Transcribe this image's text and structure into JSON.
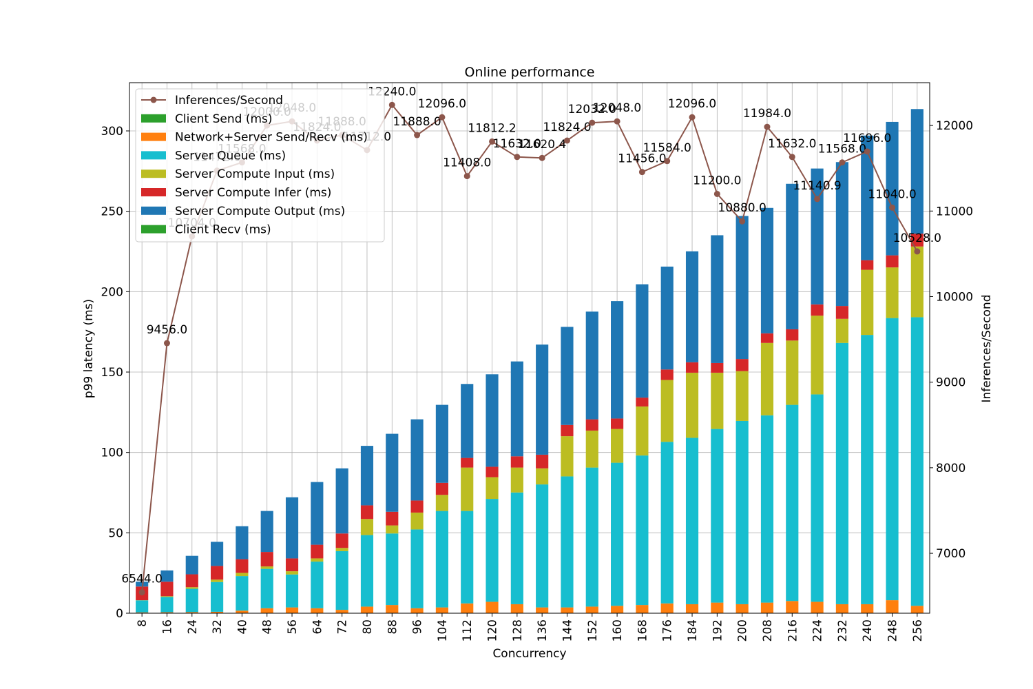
{
  "chart_data": {
    "type": "bar",
    "title": "Online performance",
    "xlabel": "Concurrency",
    "ylabel": "p99 latency (ms)",
    "y2label": "Inferences/Second",
    "ylim": [
      0,
      330
    ],
    "y2lim": [
      6300,
      12500
    ],
    "yticks": [
      0,
      50,
      100,
      150,
      200,
      250,
      300
    ],
    "y2ticks": [
      7000,
      8000,
      9000,
      10000,
      11000,
      12000
    ],
    "grid": true,
    "legend_position": "top-left",
    "categories": [
      "8",
      "16",
      "24",
      "32",
      "40",
      "48",
      "56",
      "64",
      "72",
      "80",
      "88",
      "96",
      "104",
      "112",
      "120",
      "128",
      "136",
      "144",
      "152",
      "160",
      "168",
      "176",
      "184",
      "192",
      "200",
      "208",
      "216",
      "224",
      "232",
      "240",
      "248",
      "256"
    ],
    "series": [
      {
        "name": "Client Send (ms)",
        "color": "#2ca02c",
        "values": [
          0.1,
          0.1,
          0.1,
          0.1,
          0.1,
          0.1,
          0.1,
          0.1,
          0.1,
          0.1,
          0.1,
          0.1,
          0.1,
          0.1,
          0.1,
          0.1,
          0.1,
          0.1,
          0.1,
          0.1,
          0.1,
          0.1,
          0.1,
          0.1,
          0.1,
          0.1,
          0.1,
          0.1,
          0.1,
          0.1,
          0.1,
          0.1
        ]
      },
      {
        "name": "Network+Server Send/Recv (ms)",
        "color": "#ff7f0e",
        "values": [
          0.4,
          0.5,
          0.6,
          0.8,
          1.5,
          3,
          3.5,
          3,
          2,
          4,
          5,
          3,
          3.5,
          6,
          7,
          5.5,
          3.5,
          3.5,
          4,
          4.5,
          5,
          6,
          5.5,
          6.5,
          5.5,
          6.5,
          7.5,
          7,
          5.5,
          5.5,
          8,
          4.5
        ]
      },
      {
        "name": "Server Queue (ms)",
        "color": "#17becf",
        "values": [
          7.5,
          9.5,
          14.5,
          18.5,
          21.5,
          24.5,
          20.5,
          29,
          36.5,
          44.5,
          44.5,
          49,
          60,
          57.5,
          64,
          69.5,
          76.5,
          81.5,
          86.5,
          89,
          93,
          100.5,
          103.5,
          108,
          114,
          116.5,
          122,
          129,
          162.5,
          167.5,
          175.5,
          179.5
        ]
      },
      {
        "name": "Server Compute Input (ms)",
        "color": "#bcbd22",
        "values": [
          0.1,
          0.5,
          1,
          1.5,
          2,
          1.5,
          2,
          2,
          2,
          10,
          5,
          10.5,
          10,
          27,
          13.5,
          15.5,
          10,
          25,
          23,
          21,
          30.5,
          38.5,
          40.5,
          35,
          31,
          45,
          40,
          49,
          15,
          40.5,
          31.5,
          44
        ]
      },
      {
        "name": "Server Compute Infer (ms)",
        "color": "#d62728",
        "values": [
          8.5,
          9,
          8,
          8.5,
          8.5,
          9,
          8,
          8.5,
          9,
          8.5,
          8.5,
          7.5,
          7.5,
          6,
          6.5,
          7,
          8.5,
          7,
          7,
          6.5,
          5.5,
          6.5,
          6.5,
          6,
          7.5,
          6,
          7,
          7,
          8,
          6,
          7.5,
          8
        ]
      },
      {
        "name": "Server Compute Output (ms)",
        "color": "#1f77b4",
        "values": [
          3,
          7,
          11.5,
          15,
          20.5,
          25.5,
          38,
          39,
          40.5,
          37,
          48.5,
          50.5,
          48.5,
          46,
          57.5,
          59,
          68.5,
          61,
          67,
          73,
          70.5,
          64,
          69,
          79.5,
          89,
          78,
          90.5,
          84.5,
          89.5,
          77.5,
          83,
          77.5
        ]
      },
      {
        "name": "Client Recv (ms)",
        "color": "#2ca02c",
        "values": [
          0,
          0,
          0,
          0,
          0,
          0,
          0,
          0,
          0,
          0,
          0,
          0,
          0,
          0,
          0,
          0,
          0,
          0,
          0,
          0,
          0,
          0,
          0,
          0,
          0,
          0,
          0,
          0,
          0,
          0,
          0,
          0
        ]
      }
    ],
    "line_series": {
      "name": "Inferences/Second",
      "color": "#8c564b",
      "values": [
        6544.0,
        9456.0,
        10704.0,
        11472.0,
        11568.0,
        12000.0,
        12048.0,
        11824.0,
        11888.0,
        11712.0,
        12240.0,
        11888.0,
        12096.0,
        11408.0,
        11812.2,
        11632.0,
        11620.4,
        11824.0,
        12032.0,
        12048.0,
        11456.0,
        11584.0,
        12096.0,
        11200.0,
        10880.0,
        11984.0,
        11632.0,
        11140.9,
        11568.0,
        11696.0,
        11040.0,
        10528.0
      ],
      "labels": [
        "6544.0",
        "9456.0",
        "10704.0",
        "11472.0",
        "11568.0",
        "12000.0",
        "12048.0",
        "11824.0",
        "11888.0",
        "11712.0",
        "12240.0",
        "11888.0",
        "12096.0",
        "11408.0",
        "11812.2",
        "11632.0",
        "11620.4",
        "11824.0",
        "12032.0",
        "12048.0",
        "11456.0",
        "11584.0",
        "12096.0",
        "11200.0",
        "10880.0",
        "11984.0",
        "11632.0",
        "11140.9",
        "11568.0",
        "11696.0",
        "11040.0",
        "10528.0"
      ]
    }
  }
}
